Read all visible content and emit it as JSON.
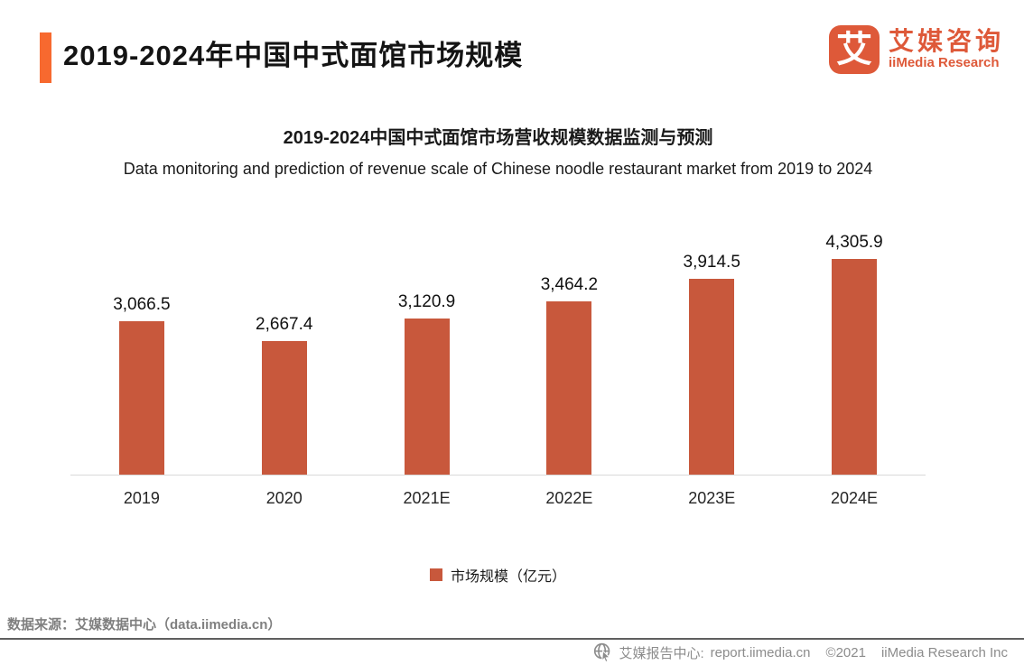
{
  "header": {
    "title": "2019-2024年中国中式面馆市场规模",
    "logo": {
      "mark_glyph": "艾",
      "name_cn": "艾媒咨询",
      "name_en": "iiMedia Research"
    }
  },
  "chart_data": {
    "type": "bar",
    "title": "2019-2024中国中式面馆市场营收规模数据监测与预测",
    "subtitle": "Data monitoring and prediction of revenue scale of Chinese noodle restaurant market from 2019 to 2024",
    "categories": [
      "2019",
      "2020",
      "2021E",
      "2022E",
      "2023E",
      "2024E"
    ],
    "values": [
      3066.5,
      2667.4,
      3120.9,
      3464.2,
      3914.5,
      4305.9
    ],
    "value_labels": [
      "3,066.5",
      "2,667.4",
      "3,120.9",
      "3,464.2",
      "3,914.5",
      "4,305.9"
    ],
    "legend": "市场规模（亿元）",
    "legend_position": "bottom",
    "xlabel": "",
    "ylabel": "",
    "ylim": [
      0,
      4500
    ],
    "grid": false,
    "bar_color": "#C8583C"
  },
  "footer": {
    "source": "数据来源：艾媒数据中心（data.iimedia.cn）",
    "report_center": "艾媒报告中心:",
    "report_url": "report.iimedia.cn",
    "copyright": "©2021",
    "company": "iiMedia Research  Inc"
  },
  "colors": {
    "accent_bar": "#F7692F",
    "logo_orange": "#DE5939",
    "bar_orange": "#C8583C",
    "footer_gray": "#8c8c8c",
    "axis_line": "#d9d9d9"
  }
}
